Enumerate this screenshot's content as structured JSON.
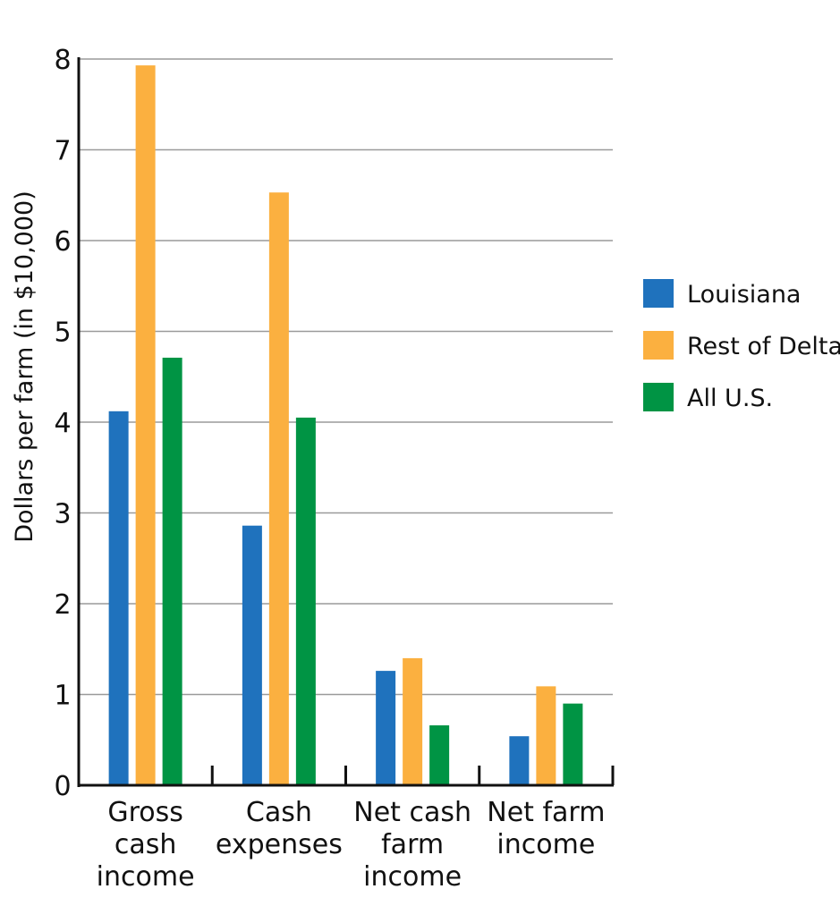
{
  "chart_data": {
    "type": "bar",
    "ylabel": "Dollars per farm (in $10,000)",
    "ylim": [
      0,
      8
    ],
    "yticks": [
      "0",
      "1",
      "2",
      "3",
      "4",
      "5",
      "6",
      "7",
      "8"
    ],
    "grid": true,
    "legend_position": "right",
    "categories": [
      [
        "Gross",
        "cash",
        "income"
      ],
      [
        "Cash",
        "expenses"
      ],
      [
        "Net cash",
        "farm",
        "income"
      ],
      [
        "Net farm",
        "income"
      ]
    ],
    "series": [
      {
        "name": "Louisiana",
        "color": "#1f72bd",
        "values": [
          4.12,
          2.86,
          1.26,
          0.54
        ]
      },
      {
        "name": "Rest of Delta",
        "color": "#fbb040",
        "values": [
          7.93,
          6.53,
          1.4,
          1.09
        ]
      },
      {
        "name": "All U.S.",
        "color": "#009444",
        "values": [
          4.71,
          4.05,
          0.66,
          0.9
        ]
      }
    ]
  }
}
